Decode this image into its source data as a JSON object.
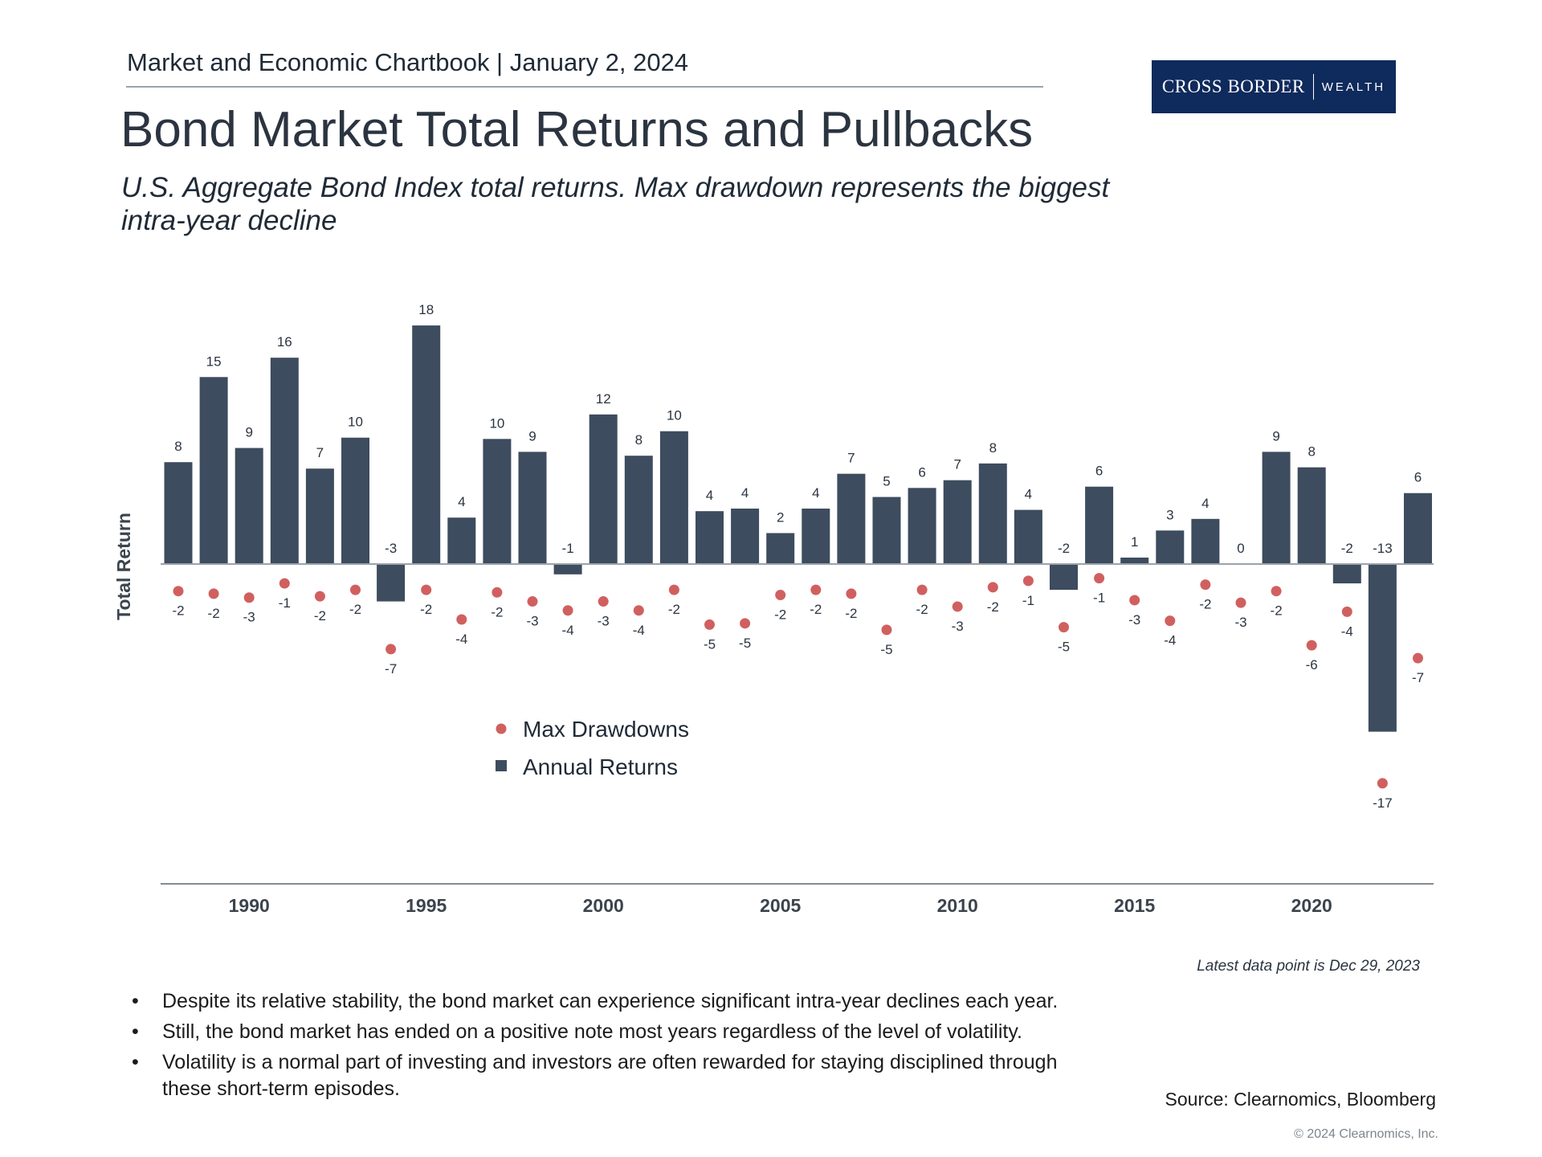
{
  "header": {
    "chartbook": "Market and Economic Chartbook | January 2, 2024",
    "logo_brand": "CROSS BORDER",
    "logo_wealth": "WEALTH"
  },
  "title": "Bond Market Total Returns and Pullbacks",
  "subtitle": "U.S. Aggregate Bond Index total returns. Max drawdown represents the biggest intra-year decline",
  "chart_data": {
    "type": "bar",
    "ylabel": "Total Return",
    "x": [
      1988,
      1989,
      1990,
      1991,
      1992,
      1993,
      1994,
      1995,
      1996,
      1997,
      1998,
      1999,
      2000,
      2001,
      2002,
      2003,
      2004,
      2005,
      2006,
      2007,
      2008,
      2009,
      2010,
      2011,
      2012,
      2013,
      2014,
      2015,
      2016,
      2017,
      2018,
      2019,
      2020,
      2021,
      2022,
      2023
    ],
    "x_ticks": [
      "1990",
      "1995",
      "2000",
      "2005",
      "2010",
      "2015",
      "2020"
    ],
    "x_tick_values": [
      1990,
      1995,
      2000,
      2005,
      2010,
      2015,
      2020
    ],
    "ylim": [
      -24,
      19
    ],
    "series": [
      {
        "name": "Annual Returns",
        "kind": "bar",
        "color": "#3d4c5e",
        "values": [
          7.9,
          14.5,
          9.0,
          16.0,
          7.4,
          9.8,
          -2.9,
          18.5,
          3.6,
          9.7,
          8.7,
          -0.8,
          11.6,
          8.4,
          10.3,
          4.1,
          4.3,
          2.4,
          4.3,
          7.0,
          5.2,
          5.9,
          6.5,
          7.8,
          4.2,
          -2.0,
          6.0,
          0.5,
          2.6,
          3.5,
          0.0,
          8.7,
          7.5,
          -1.5,
          -13.0,
          5.5
        ],
        "labels": [
          "8",
          "15",
          "9",
          "16",
          "7",
          "10",
          "-3",
          "18",
          "4",
          "10",
          "9",
          "-1",
          "12",
          "8",
          "10",
          "4",
          "4",
          "2",
          "4",
          "7",
          "5",
          "6",
          "7",
          "8",
          "4",
          "-2",
          "6",
          "1",
          "3",
          "4",
          "0",
          "9",
          "8",
          "-2",
          "-13",
          "6"
        ]
      },
      {
        "name": "Max Drawdowns",
        "kind": "dot",
        "color": "#d0605f",
        "values": [
          -2.1,
          -2.3,
          -2.6,
          -1.5,
          -2.5,
          -2.0,
          -6.6,
          -2.0,
          -4.3,
          -2.2,
          -2.9,
          -3.6,
          -2.9,
          -3.6,
          -2.0,
          -4.7,
          -4.6,
          -2.4,
          -2.0,
          -2.3,
          -5.1,
          -2.0,
          -3.3,
          -1.8,
          -1.3,
          -4.9,
          -1.1,
          -2.8,
          -4.4,
          -1.6,
          -3.0,
          -2.1,
          -6.3,
          -3.7,
          -17.0,
          -7.3
        ],
        "labels": [
          "-2",
          "-2",
          "-3",
          "-1",
          "-2",
          "-2",
          "-7",
          "-2",
          "-4",
          "-2",
          "-3",
          "-4",
          "-3",
          "-4",
          "-2",
          "-5",
          "-5",
          "-2",
          "-2",
          "-2",
          "-5",
          "-2",
          "-3",
          "-2",
          "-1",
          "-5",
          "-1",
          "-3",
          "-4",
          "-2",
          "-3",
          "-2",
          "-6",
          "-4",
          "-17",
          "-7"
        ]
      }
    ],
    "legend": [
      "Max Drawdowns",
      "Annual Returns"
    ],
    "legend_position": "lower-left"
  },
  "note": "Latest data point is Dec 29, 2023",
  "bullets": [
    "Despite its relative stability, the bond market can experience significant intra-year declines each year.",
    "Still, the bond market has ended on a positive note most years regardless of the level of volatility.",
    "Volatility is a normal part of investing and investors are often rewarded for staying disciplined through these short-term episodes."
  ],
  "bullet_mark": "•",
  "source": "Source: Clearnomics, Bloomberg",
  "copyright": "© 2024 Clearnomics, Inc."
}
